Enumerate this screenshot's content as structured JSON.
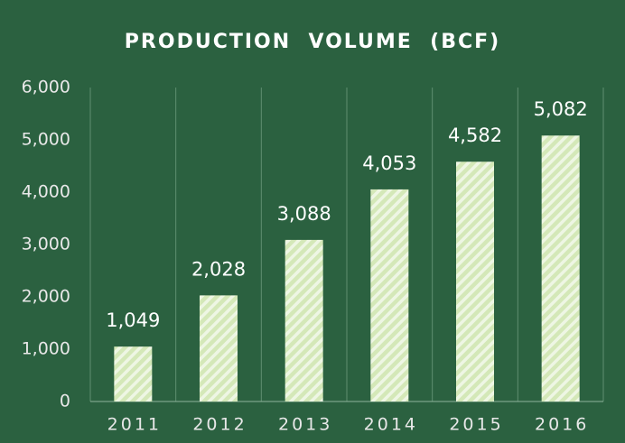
{
  "chart_data": {
    "type": "bar",
    "title": "PRODUCTION  VOLUME  (BCF)",
    "categories": [
      "2011",
      "2012",
      "2013",
      "2014",
      "2015",
      "2016"
    ],
    "values": [
      1049,
      2028,
      3088,
      4053,
      4582,
      5082
    ],
    "value_labels": [
      "1,049",
      "2,028",
      "3,088",
      "4,053",
      "4,582",
      "5,082"
    ],
    "color": "#d4e8b8",
    "ylim": [
      0,
      6000
    ],
    "yticks": [
      0,
      {
        "value": 1000,
        "label": "1,000"
      },
      {
        "value": 2000,
        "label": "2,000"
      },
      {
        "value": 3000,
        "label": "3,000"
      },
      {
        "value": 4000,
        "label": "4,000"
      },
      {
        "value": 5000,
        "label": "5,000"
      },
      {
        "value": 6000,
        "label": "6,000"
      }
    ],
    "grid": false
  }
}
